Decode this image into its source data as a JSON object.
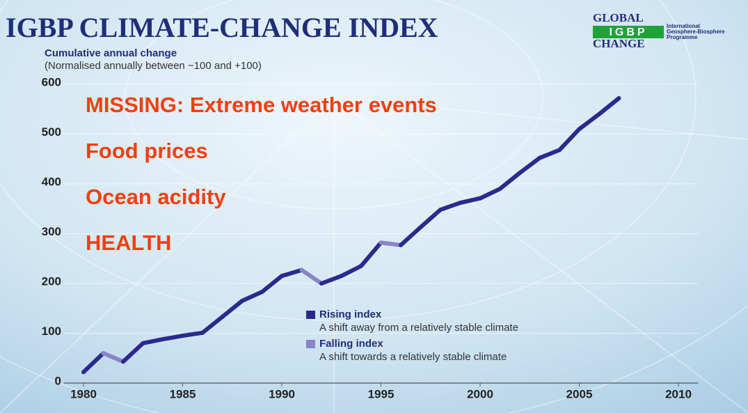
{
  "chart_data": {
    "type": "line",
    "title": "IGBP CLIMATE-CHANGE INDEX",
    "subtitle": "Cumulative annual change",
    "note": "(Normalised annually between −100 and +100)",
    "x": [
      1980,
      1981,
      1982,
      1983,
      1984,
      1985,
      1986,
      1987,
      1988,
      1989,
      1990,
      1991,
      1992,
      1993,
      1994,
      1995,
      1996,
      1997,
      1998,
      1999,
      2000,
      2001,
      2002,
      2003,
      2004,
      2005,
      2006,
      2007
    ],
    "series": [
      {
        "name": "Index",
        "color": "#2b2a8c",
        "values": [
          22,
          60,
          43,
          80,
          88,
          95,
          101,
          133,
          165,
          183,
          215,
          227,
          200,
          215,
          235,
          282,
          277,
          313,
          348,
          362,
          371,
          390,
          422,
          452,
          468,
          510,
          540,
          572
        ]
      }
    ],
    "legend": [
      {
        "name": "Rising index",
        "description": "A shift away from a relatively stable climate",
        "color": "#2b2a8c"
      },
      {
        "name": "Falling index",
        "description": "A shift towards a relatively stable climate",
        "color": "#8a84c8"
      }
    ],
    "xlim": [
      1979,
      2011
    ],
    "xticks": [
      1980,
      1985,
      1990,
      1995,
      2000,
      2005,
      2010
    ],
    "ylim": [
      0,
      600
    ],
    "yticks": [
      0,
      100,
      200,
      300,
      400,
      500,
      600
    ],
    "grid": true,
    "annotations": [
      "MISSING: Extreme weather events",
      "Food prices",
      "Ocean acidity",
      "HEALTH"
    ],
    "logo": {
      "top": "GLOBAL",
      "middle": "IGBP",
      "bottom": "CHANGE",
      "text": [
        "International",
        "Geosphere-Biosphere",
        "Programme"
      ]
    }
  }
}
